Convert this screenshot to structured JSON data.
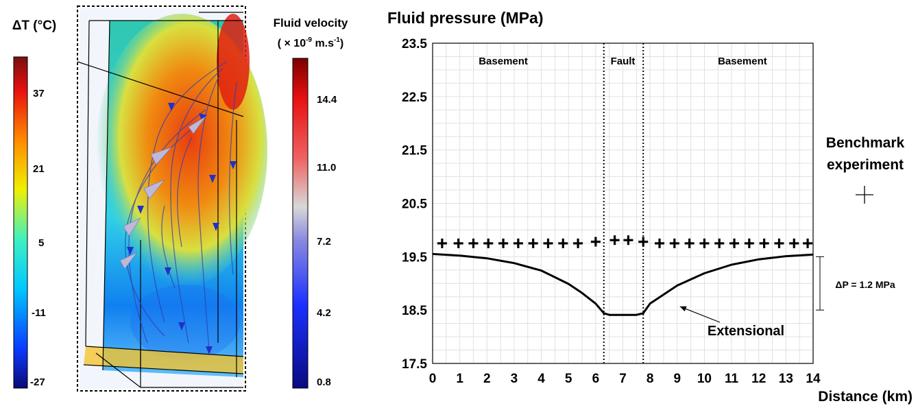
{
  "left_panel": {
    "temperature_colorbar": {
      "title": "ΔT (°C)",
      "ticks": [
        "37",
        "21",
        "5",
        "-11",
        "-27"
      ]
    },
    "velocity_colorbar": {
      "title_line1": "Fluid velocity",
      "title_line2_prefix": "( × 10",
      "title_line2_exp": "-9",
      "title_line2_unit": " m.s",
      "title_line2_unit_exp": "-1",
      "title_line2_suffix": ")",
      "ticks": [
        "14.4",
        "11.0",
        "7.2",
        "4.2",
        "0.8"
      ]
    }
  },
  "chart_data": {
    "type": "line",
    "ylabel": "Fluid pressure (MPa)",
    "xlabel": "Distance (km)",
    "xlim": [
      0,
      14
    ],
    "ylim": [
      17.5,
      23.5
    ],
    "x_ticks": [
      "0",
      "1",
      "2",
      "3",
      "4",
      "5",
      "6",
      "7",
      "8",
      "9",
      "10",
      "11",
      "12",
      "13",
      "14"
    ],
    "y_ticks": [
      "23.5",
      "22.5",
      "21.5",
      "20.5",
      "19.5",
      "18.5",
      "17.5"
    ],
    "grid": true,
    "regions": [
      {
        "label": "Basement",
        "x_center": 2.6
      },
      {
        "label": "Fault",
        "x_center": 7.0
      },
      {
        "label": "Basement",
        "x_center": 11.4
      }
    ],
    "fault_boundaries": [
      6.3,
      7.75
    ],
    "series": [
      {
        "name": "Extensional",
        "style": "line",
        "x": [
          0,
          1,
          2,
          3,
          4,
          5,
          5.5,
          6.0,
          6.3,
          6.5,
          7.0,
          7.5,
          7.75,
          8.0,
          9,
          10,
          11,
          12,
          13,
          14
        ],
        "y": [
          19.55,
          19.52,
          19.47,
          19.38,
          19.24,
          18.99,
          18.82,
          18.62,
          18.44,
          18.41,
          18.41,
          18.41,
          18.44,
          18.62,
          18.96,
          19.19,
          19.35,
          19.45,
          19.51,
          19.54
        ]
      },
      {
        "name": "Benchmark experiment",
        "style": "plus",
        "x": [
          0.35,
          0.95,
          1.5,
          2.05,
          2.6,
          3.15,
          3.7,
          4.25,
          4.8,
          5.35,
          6.0,
          6.7,
          7.2,
          7.75,
          8.35,
          8.9,
          9.45,
          10.0,
          10.55,
          11.1,
          11.65,
          12.2,
          12.75,
          13.3,
          13.8
        ],
        "y": [
          19.75,
          19.75,
          19.75,
          19.75,
          19.75,
          19.75,
          19.75,
          19.75,
          19.75,
          19.75,
          19.78,
          19.81,
          19.81,
          19.78,
          19.75,
          19.75,
          19.75,
          19.75,
          19.75,
          19.75,
          19.75,
          19.75,
          19.75,
          19.75,
          19.75
        ]
      }
    ],
    "annotations": {
      "curve_label": "Extensional",
      "delta_p": "ΔP = 1.2 MPa",
      "delta_p_range": [
        18.5,
        19.5
      ],
      "legend_line1": "Benchmark",
      "legend_line2": "experiment"
    }
  }
}
